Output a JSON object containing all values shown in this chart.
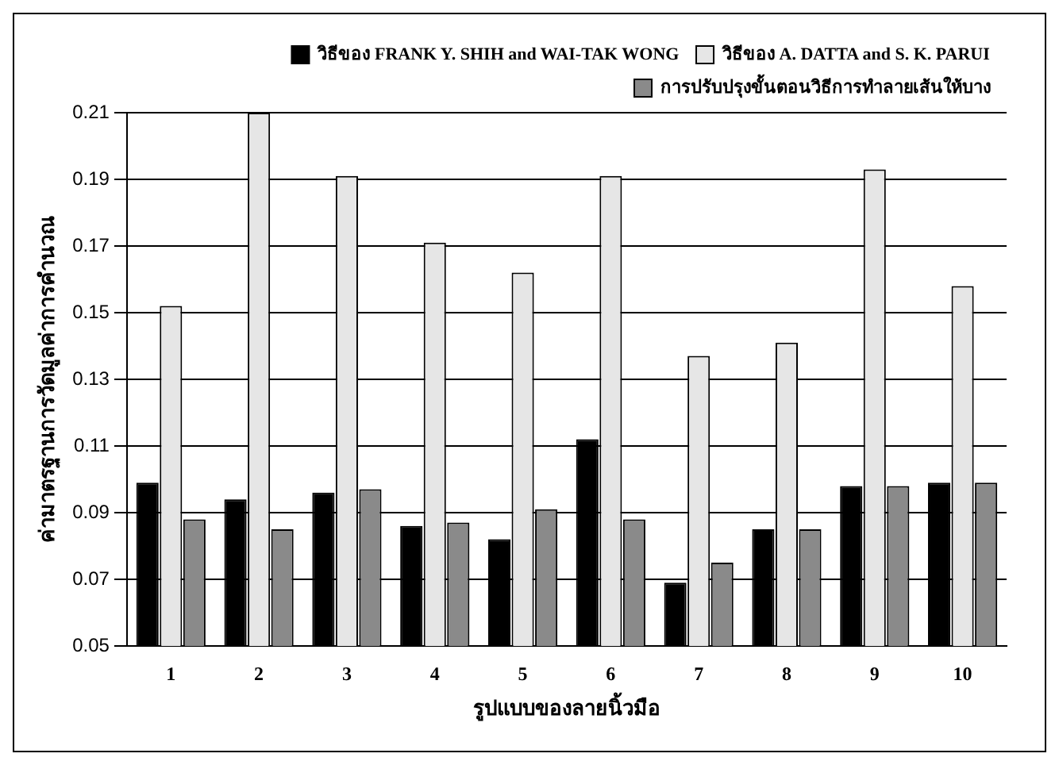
{
  "chart_data": {
    "type": "bar",
    "xlabel": "รูปแบบของลายนิ้วมือ",
    "ylabel": "ค่ามาตรฐานการวัดมูลค่าการคำนวณ",
    "categories": [
      "1",
      "2",
      "3",
      "4",
      "5",
      "6",
      "7",
      "8",
      "9",
      "10"
    ],
    "series": [
      {
        "name": "วิธีของ FRANK Y. SHIH and WAI-TAK WONG",
        "color": "#000000",
        "values": [
          0.099,
          0.094,
          0.096,
          0.086,
          0.082,
          0.112,
          0.069,
          0.085,
          0.098,
          0.099
        ]
      },
      {
        "name": "วิธีของ A. DATTA and S. K. PARUI",
        "color": "#e6e6e6",
        "values": [
          0.152,
          0.21,
          0.191,
          0.171,
          0.162,
          0.191,
          0.137,
          0.141,
          0.193,
          0.158
        ]
      },
      {
        "name": "การปรับปรุงขั้นตอนวิธีการทำลายเส้นให้บาง",
        "color": "#8a8a8a",
        "values": [
          0.088,
          0.085,
          0.097,
          0.087,
          0.091,
          0.088,
          0.075,
          0.085,
          0.098,
          0.099
        ]
      }
    ],
    "ylim": [
      0.05,
      0.21
    ],
    "yticks": [
      0.05,
      0.07,
      0.09,
      0.11,
      0.13,
      0.15,
      0.17,
      0.19,
      0.21
    ],
    "grid": "y",
    "legend": "top right"
  }
}
